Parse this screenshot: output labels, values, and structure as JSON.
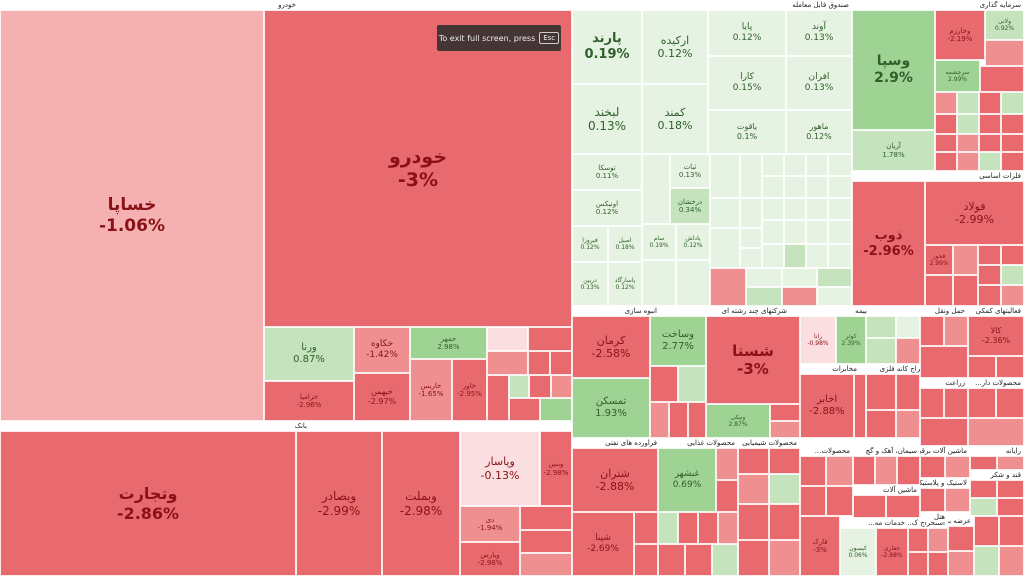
{
  "toast": {
    "text": "To exit full screen, press",
    "key": "Esc"
  },
  "colors": {
    "neg_strong": "#e86a6e",
    "neg_mid": "#ef8f90",
    "neg_light": "#f5b1b1",
    "neg_pale": "#fbdfe0",
    "pos_mid": "#9ed394",
    "pos_light": "#c5e4bd",
    "pos_pale": "#e6f3e2"
  },
  "sectors": [
    {
      "name": "خودرو"
    },
    {
      "name": "صندوق قابل معامله"
    },
    {
      "name": "سرمایه گذاری"
    },
    {
      "name": "فلزات اساسی"
    },
    {
      "name": "بانک"
    },
    {
      "name": "انبوه سازی"
    },
    {
      "name": "شرکتهای چند رشته ای"
    },
    {
      "name": "بیمه"
    },
    {
      "name": "حمل ونقل"
    },
    {
      "name": "فعالیتهای کمکی"
    },
    {
      "name": "فراورده های نفتی"
    },
    {
      "name": "محصولات غذایی"
    },
    {
      "name": "محصولات شیمیایی"
    },
    {
      "name": "مخابرات"
    },
    {
      "name": "استخراج کانه فلزی"
    },
    {
      "name": "زراعت"
    },
    {
      "name": "محصولات دار..."
    },
    {
      "name": "سیمان، آهک و گچ"
    },
    {
      "name": "محصولات..."
    },
    {
      "name": "ماشین آلات برقی"
    },
    {
      "name": "رایانه"
    },
    {
      "name": "قند و شکر"
    },
    {
      "name": "لاستیک و پلاستیک"
    },
    {
      "name": "ماشین آلات"
    },
    {
      "name": "خدمات مه..."
    },
    {
      "name": "استخراج ک..."
    },
    {
      "name": "عرضه برق"
    },
    {
      "name": "هتل"
    }
  ],
  "tiles": [
    {
      "name": "خساپا",
      "change": "-1.06%"
    },
    {
      "name": "خودرو",
      "change": "-3%"
    },
    {
      "name": "ورنا",
      "change": "0.87%"
    },
    {
      "name": "خکاوه",
      "change": "-1.42%"
    },
    {
      "name": "خبهمن",
      "change": "-2.97%"
    },
    {
      "name": "خزامیا",
      "change": "-2.96%"
    },
    {
      "name": "خمهر",
      "change": "2.98%"
    },
    {
      "name": "خاریس",
      "change": "-1.65%"
    },
    {
      "name": "خاور",
      "change": "-2.95%"
    },
    {
      "name": "وتجارت",
      "change": "-2.86%"
    },
    {
      "name": "وبصادر",
      "change": "-2.99%"
    },
    {
      "name": "وبملت",
      "change": "-2.98%"
    },
    {
      "name": "وپاسار",
      "change": "-0.13%"
    },
    {
      "name": "وبنین",
      "change": "-2.98%"
    },
    {
      "name": "دی",
      "change": "-1.94%"
    },
    {
      "name": "وپارس",
      "change": "-2.98%"
    },
    {
      "name": "پارند",
      "change": "0.19%"
    },
    {
      "name": "ارکیده",
      "change": "0.12%"
    },
    {
      "name": "پایا",
      "change": "0.12%"
    },
    {
      "name": "آوند",
      "change": "0.13%"
    },
    {
      "name": "کارا",
      "change": "0.15%"
    },
    {
      "name": "افران",
      "change": "0.13%"
    },
    {
      "name": "لبخند",
      "change": "0.13%"
    },
    {
      "name": "کمند",
      "change": "0.18%"
    },
    {
      "name": "یاقوت",
      "change": "0.1%"
    },
    {
      "name": "ماهور",
      "change": "0.12%"
    },
    {
      "name": "توسکا",
      "change": "0.11%"
    },
    {
      "name": "ثبات",
      "change": "0.13%"
    },
    {
      "name": "اونیکس",
      "change": "0.12%"
    },
    {
      "name": "درخشان",
      "change": "0.34%"
    },
    {
      "name": "فیروزا",
      "change": "0.12%"
    },
    {
      "name": "اصیل",
      "change": "0.18%"
    },
    {
      "name": "سام",
      "change": "0.19%"
    },
    {
      "name": "یاداش",
      "change": "0.12%"
    },
    {
      "name": "دریين",
      "change": "0.13%"
    },
    {
      "name": "پاسارگاد",
      "change": "0.12%"
    },
    {
      "name": "وسپا",
      "change": "2.9%"
    },
    {
      "name": "آریان",
      "change": "1.78%"
    },
    {
      "name": "وخارزم",
      "change": "-2.19%"
    },
    {
      "name": "سرچشمه",
      "change": "2.99%"
    },
    {
      "name": "ولانی",
      "change": "0.92%"
    },
    {
      "name": "ذوب",
      "change": "-2.96%"
    },
    {
      "name": "فولاد",
      "change": "-2.99%"
    },
    {
      "name": "فخوز",
      "change": "2.99%"
    },
    {
      "name": "کرمان",
      "change": "-2.58%"
    },
    {
      "name": "تمسکن",
      "change": "1.93%"
    },
    {
      "name": "وساخت",
      "change": "2.77%"
    },
    {
      "name": "شستا",
      "change": "-3%"
    },
    {
      "name": "ونیکی",
      "change": "2.87%"
    },
    {
      "name": "رانا",
      "change": "-0.98%"
    },
    {
      "name": "کوثر",
      "change": "2.39%"
    },
    {
      "name": "کالا",
      "change": "-2.36%"
    },
    {
      "name": "اخابر",
      "change": "-2.88%"
    },
    {
      "name": "شتران",
      "change": "-2.88%"
    },
    {
      "name": "شپنا",
      "change": "-2.69%"
    },
    {
      "name": "غبشهر",
      "change": "0.69%"
    },
    {
      "name": "فارک",
      "change": "-3%"
    },
    {
      "name": "کیسون",
      "change": "0.06%"
    },
    {
      "name": "حفاری",
      "change": "-2.88%"
    }
  ]
}
